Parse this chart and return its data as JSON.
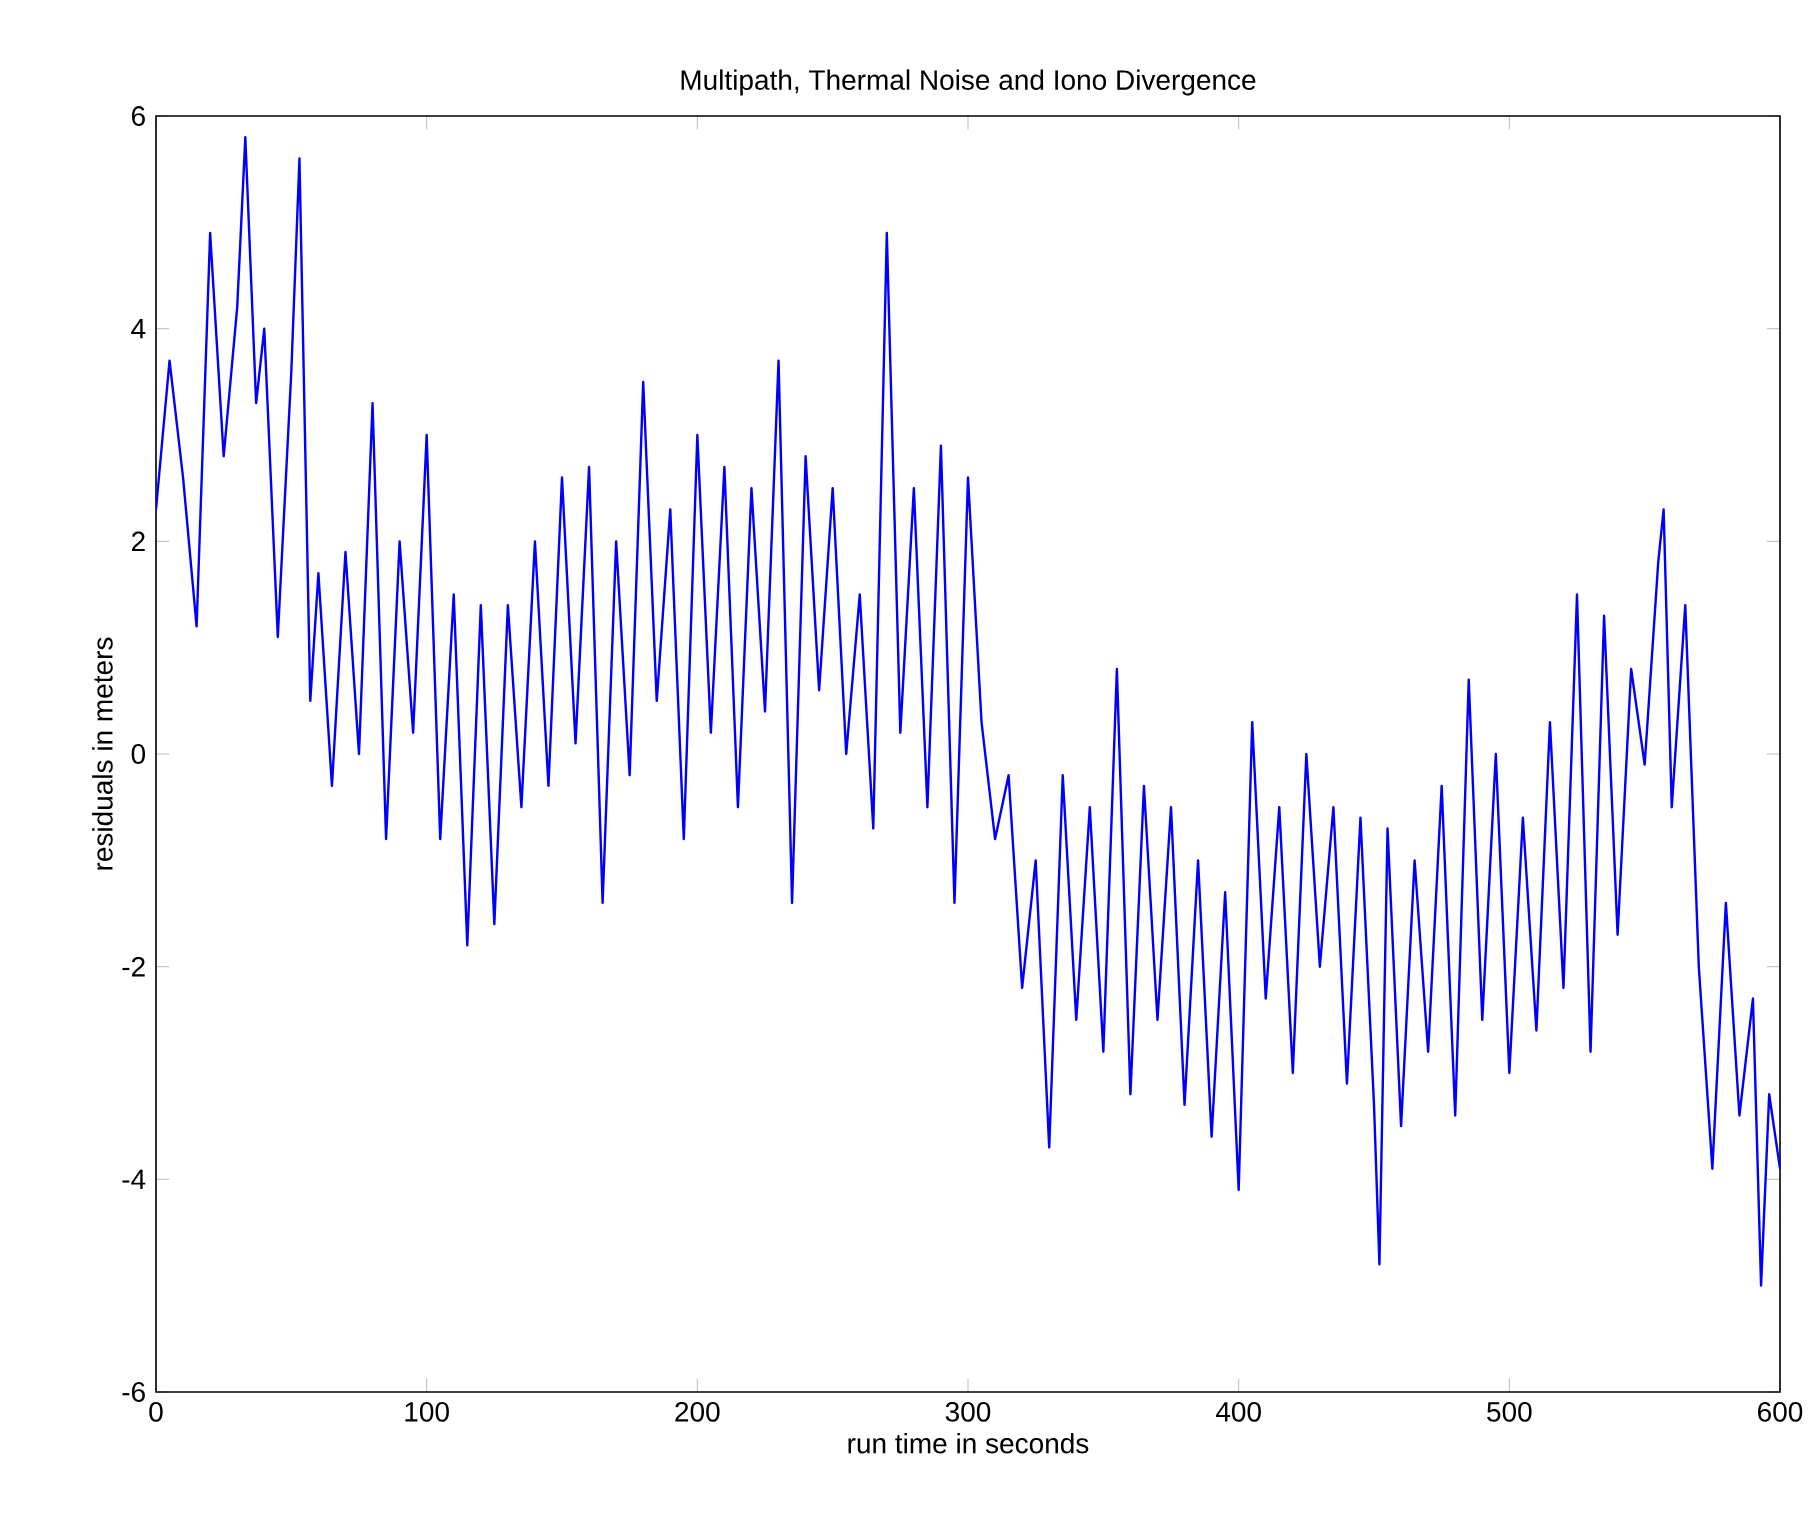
{
  "chart_data": {
    "type": "line",
    "title": "Multipath, Thermal Noise and Iono Divergence",
    "xlabel": "run time in seconds",
    "ylabel": "residuals in meters",
    "xlim": [
      0,
      600
    ],
    "ylim": [
      -6,
      6
    ],
    "xticks": [
      0,
      100,
      200,
      300,
      400,
      500,
      600
    ],
    "yticks": [
      -6,
      -4,
      -2,
      0,
      2,
      4,
      6
    ],
    "line_style": "solid",
    "marker": "none",
    "x": [
      0,
      5,
      10,
      15,
      20,
      25,
      30,
      33,
      37,
      40,
      45,
      50,
      53,
      57,
      60,
      65,
      70,
      75,
      80,
      85,
      90,
      95,
      100,
      105,
      110,
      115,
      120,
      125,
      130,
      135,
      140,
      145,
      150,
      155,
      160,
      165,
      170,
      175,
      180,
      185,
      190,
      195,
      200,
      205,
      210,
      215,
      220,
      225,
      230,
      235,
      240,
      245,
      250,
      255,
      260,
      265,
      270,
      275,
      280,
      285,
      290,
      295,
      300,
      305,
      310,
      315,
      320,
      325,
      330,
      335,
      340,
      345,
      350,
      355,
      360,
      365,
      370,
      375,
      380,
      385,
      390,
      395,
      400,
      405,
      410,
      415,
      420,
      425,
      430,
      435,
      440,
      445,
      450,
      452,
      455,
      460,
      465,
      470,
      475,
      480,
      485,
      490,
      495,
      500,
      505,
      510,
      515,
      520,
      525,
      530,
      535,
      540,
      545,
      550,
      555,
      557,
      560,
      565,
      570,
      575,
      580,
      585,
      590,
      593,
      596,
      600
    ],
    "series": [
      {
        "color": "#0000ff",
        "values": [
          2.3,
          3.7,
          2.6,
          1.2,
          4.9,
          2.8,
          4.2,
          5.8,
          3.3,
          4.0,
          1.1,
          3.6,
          5.6,
          0.5,
          1.7,
          -0.3,
          1.9,
          0.0,
          3.3,
          -0.8,
          2.0,
          0.2,
          3.0,
          -0.8,
          1.5,
          -1.8,
          1.4,
          -1.6,
          1.4,
          -0.5,
          2.0,
          -0.3,
          2.6,
          0.1,
          2.7,
          -1.4,
          2.0,
          -0.2,
          3.5,
          0.5,
          2.3,
          -0.8,
          3.0,
          0.2,
          2.7,
          -0.5,
          2.5,
          0.4,
          3.7,
          -1.4,
          2.8,
          0.6,
          2.5,
          0.0,
          1.5,
          -0.7,
          4.9,
          0.2,
          2.5,
          -0.5,
          2.9,
          -1.4,
          2.6,
          0.3,
          -0.8,
          -0.2,
          -2.2,
          -1.0,
          -3.7,
          -0.2,
          -2.5,
          -0.5,
          -2.8,
          0.8,
          -3.2,
          -0.3,
          -2.5,
          -0.5,
          -3.3,
          -1.0,
          -3.6,
          -1.3,
          -4.1,
          0.3,
          -2.3,
          -0.5,
          -3.0,
          0.0,
          -2.0,
          -0.5,
          -3.1,
          -0.6,
          -3.3,
          -4.8,
          -0.7,
          -3.5,
          -1.0,
          -2.8,
          -0.3,
          -3.4,
          0.7,
          -2.5,
          0.0,
          -3.0,
          -0.6,
          -2.6,
          0.3,
          -2.2,
          1.5,
          -2.8,
          1.3,
          -1.7,
          0.8,
          -0.1,
          1.8,
          2.3,
          -0.5,
          1.4,
          -2.0,
          -3.9,
          -1.4,
          -3.4,
          -2.3,
          -5.0,
          -3.2,
          -3.9
        ]
      }
    ]
  }
}
